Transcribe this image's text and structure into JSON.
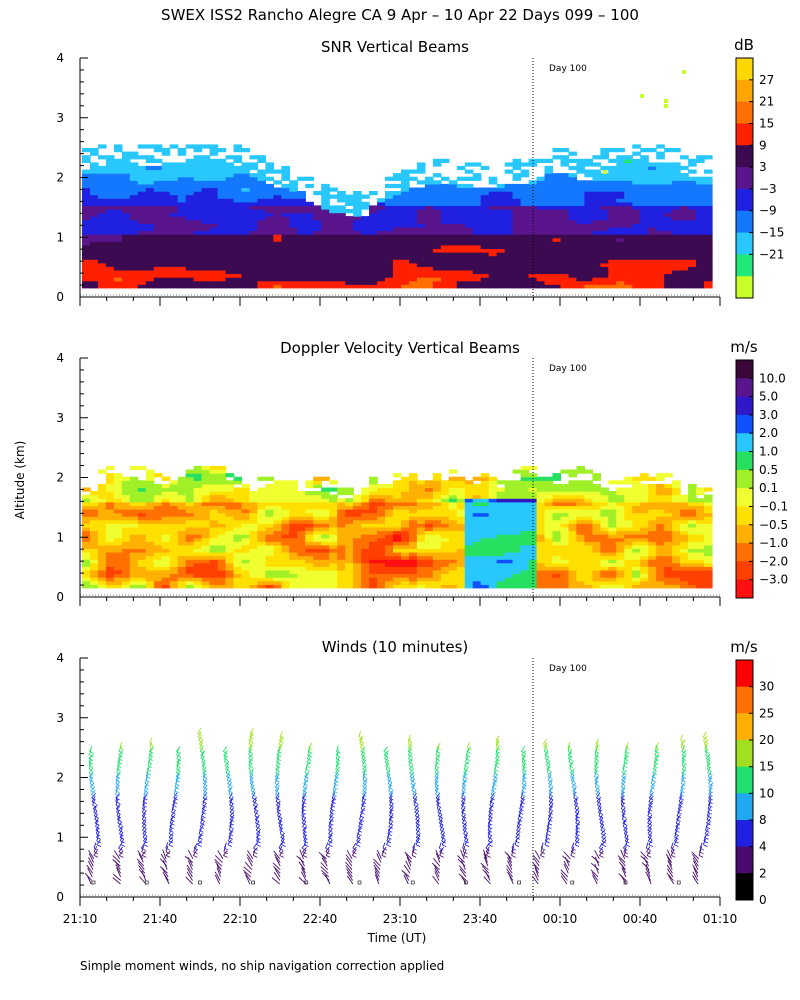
{
  "title": "SWEX ISS2 Rancho Alegre CA   9 Apr – 10 Apr 22 Days 099 – 100",
  "ylabel": "Altitude (km)",
  "xlabel": "Time (UT)",
  "footnote": "Simple moment winds, no ship navigation correction applied",
  "chart_data": [
    {
      "type": "heatmap",
      "title": "SNR Vertical Beams",
      "ylabel": "Altitude (km)",
      "ylim": [
        0,
        4
      ],
      "yticks": [
        "0",
        "1",
        "2",
        "3",
        "4"
      ],
      "xticks": [
        "21:10",
        "21:40",
        "22:10",
        "22:40",
        "23:10",
        "23:40",
        "00:10",
        "00:40",
        "01:10"
      ],
      "annotation": "Day 100",
      "colorbar": {
        "unit": "dB",
        "labels": [
          "27",
          "21",
          "15",
          "9",
          "3",
          "−3",
          "−9",
          "−15",
          "−21"
        ],
        "colors": [
          "#ffd700",
          "#ffa500",
          "#ff7000",
          "#ff2000",
          "#3c0a50",
          "#5a148c",
          "#2020e0",
          "#1478ff",
          "#28c8ff",
          "#20e878",
          "#c8ff28"
        ]
      }
    },
    {
      "type": "heatmap",
      "title": "Doppler Velocity Vertical Beams",
      "ylabel": "Altitude (km)",
      "ylim": [
        0,
        4
      ],
      "yticks": [
        "0",
        "1",
        "2",
        "3",
        "4"
      ],
      "xticks": [
        "21:10",
        "21:40",
        "22:10",
        "22:40",
        "23:10",
        "23:40",
        "00:10",
        "00:40",
        "01:10"
      ],
      "annotation": "Day 100",
      "colorbar": {
        "unit": "m/s",
        "labels": [
          "10.0",
          "5.0",
          "3.0",
          "2.0",
          "1.0",
          "0.5",
          "0.1",
          "−0.1",
          "−0.5",
          "−1.0",
          "−2.0",
          "−3.0"
        ],
        "colors": [
          "#3a0838",
          "#5a148c",
          "#3018c8",
          "#1050ff",
          "#28c8ff",
          "#28e060",
          "#a0f028",
          "#f0ff30",
          "#ffe000",
          "#ffb000",
          "#ff7000",
          "#ff4000",
          "#ff1010"
        ]
      }
    },
    {
      "type": "barbs",
      "title": "Winds (10 minutes)",
      "ylabel": "Altitude (km)",
      "ylim": [
        0,
        4
      ],
      "yticks": [
        "0",
        "1",
        "2",
        "3",
        "4"
      ],
      "xticks": [
        "21:10",
        "21:40",
        "22:10",
        "22:40",
        "23:10",
        "23:40",
        "00:10",
        "00:40",
        "01:10"
      ],
      "xlabel": "Time (UT)",
      "annotation": "Day 100",
      "profiles": 24,
      "colorbar": {
        "unit": "m/s",
        "labels": [
          "30",
          "25",
          "20",
          "15",
          "10",
          "8",
          "4",
          "2",
          "0"
        ],
        "colors": [
          "#ff0000",
          "#ff7000",
          "#ffb000",
          "#a0e020",
          "#20e070",
          "#20a8f0",
          "#2020e0",
          "#4a0a6e",
          "#000000"
        ]
      }
    }
  ]
}
